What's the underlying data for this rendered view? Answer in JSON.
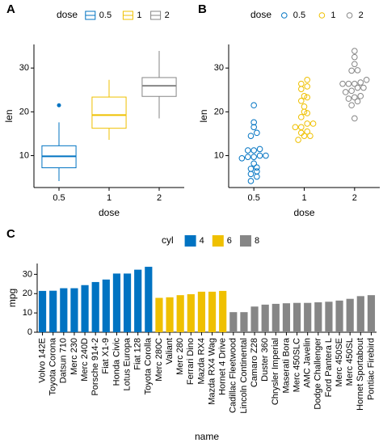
{
  "chart_data": [
    {
      "type": "box",
      "tag": "A",
      "x_label": "dose",
      "y_label": "len",
      "legend_title": "dose",
      "categories": [
        "0.5",
        "1",
        "2"
      ],
      "colors": [
        "#0073C2",
        "#EFC000",
        "#868686"
      ],
      "boxes": [
        {
          "min": 4.2,
          "q1": 7.225,
          "median": 9.85,
          "q3": 12.25,
          "max": 17.6,
          "outliers": [
            21.5
          ]
        },
        {
          "min": 13.6,
          "q1": 16.25,
          "median": 19.25,
          "q3": 23.375,
          "max": 27.3,
          "outliers": []
        },
        {
          "min": 18.5,
          "q1": 23.525,
          "median": 25.95,
          "q3": 27.825,
          "max": 33.9,
          "outliers": []
        }
      ],
      "ylim": [
        2.715,
        35.385
      ],
      "yticks": [
        10,
        20,
        30
      ]
    },
    {
      "type": "dotplot",
      "tag": "B",
      "x_label": "dose",
      "y_label": "len",
      "legend_title": "dose",
      "categories": [
        "0.5",
        "1",
        "2"
      ],
      "colors": [
        "#0073C2",
        "#EFC000",
        "#868686"
      ],
      "values": [
        [
          4.2,
          5.2,
          5.8,
          6.4,
          7.0,
          7.3,
          8.2,
          9.4,
          9.7,
          9.7,
          10,
          10,
          11.2,
          11.2,
          11.5,
          14.5,
          15.2,
          16.5,
          17.6,
          21.5
        ],
        [
          13.6,
          14.5,
          14.5,
          15.2,
          15.5,
          16.5,
          16.5,
          17.3,
          17.3,
          18.8,
          19.7,
          20,
          21.2,
          22.5,
          23.3,
          23.6,
          25.2,
          25.8,
          26.4,
          27.3
        ],
        [
          18.5,
          21.5,
          22.4,
          23,
          23.3,
          23.6,
          24.5,
          24.8,
          25.5,
          25.5,
          26.4,
          26.4,
          26.4,
          26.7,
          27.3,
          29.4,
          29.5,
          30.9,
          32.5,
          33.9
        ]
      ],
      "ylim": [
        2.715,
        35.385
      ],
      "yticks": [
        10,
        20,
        30
      ]
    },
    {
      "type": "bar",
      "tag": "C",
      "x_label": "name",
      "y_label": "mpg",
      "legend_title": "cyl",
      "series": [
        {
          "name": "4",
          "color": "#0073C2",
          "categories": [
            "Volvo 142E",
            "Toyota Corona",
            "Datsun 710",
            "Merc 230",
            "Merc 240D",
            "Porsche 914-2",
            "Fiat X1-9",
            "Honda Civic",
            "Lotus Europa",
            "Fiat 128",
            "Toyota Corolla"
          ],
          "values": [
            21.4,
            21.5,
            22.8,
            22.8,
            24.4,
            26.0,
            27.3,
            30.4,
            30.4,
            32.4,
            33.9
          ]
        },
        {
          "name": "6",
          "color": "#EFC000",
          "categories": [
            "Merc 280C",
            "Valiant",
            "Merc 280",
            "Ferrari Dino",
            "Mazda RX4",
            "Mazda RX4 Wag",
            "Hornet 4 Drive"
          ],
          "values": [
            17.8,
            18.1,
            19.2,
            19.7,
            21.0,
            21.0,
            21.4
          ]
        },
        {
          "name": "8",
          "color": "#868686",
          "categories": [
            "Cadillac Fleetwood",
            "Lincoln Continental",
            "Camaro Z28",
            "Duster 360",
            "Chrysler Imperial",
            "Maserati Bora",
            "Merc 450SLC",
            "AMC Javelin",
            "Dodge Challenger",
            "Ford Pantera L",
            "Merc 450SE",
            "Merc 450SL",
            "Hornet Sportabout",
            "Pontiac Firebird"
          ],
          "values": [
            10.4,
            10.4,
            13.3,
            14.3,
            14.7,
            15.0,
            15.2,
            15.2,
            15.5,
            15.8,
            16.4,
            17.3,
            18.7,
            19.2
          ]
        }
      ],
      "ylim": [
        0,
        35.6
      ],
      "yticks": [
        0,
        10,
        20,
        30
      ]
    }
  ]
}
